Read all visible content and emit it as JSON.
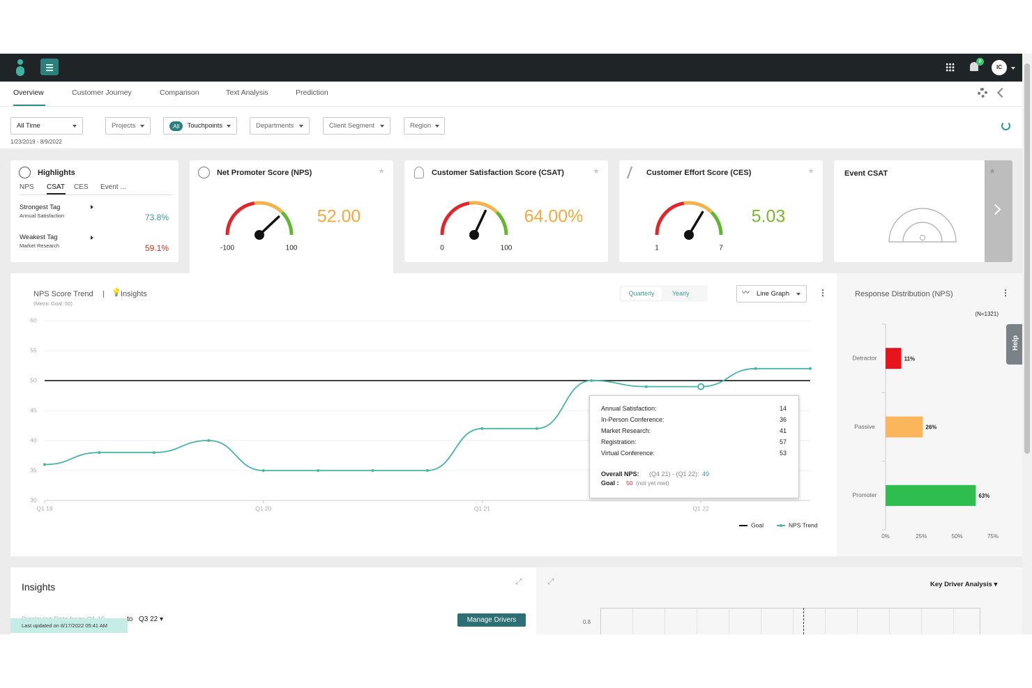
{
  "nav": {
    "badge": "8",
    "avatar": "IC"
  },
  "tabs": [
    "Overview",
    "Customer Journey",
    "Comparison",
    "Text Analysis",
    "Prediction"
  ],
  "filters": {
    "time": "All Time",
    "date_range": "1/23/2019 - 8/9/2022",
    "projects": "Projects",
    "all": "All",
    "touchpoints": "Touchpoints",
    "departments": "Departments",
    "client_segment": "Client Segment",
    "region": "Region"
  },
  "highlights": {
    "title": "Highlights",
    "tabs": [
      "NPS",
      "CSAT",
      "CES",
      "Event ..."
    ],
    "items": [
      {
        "label": "Strongest Tag",
        "sub": "Annual Satisfaction",
        "value": "73.8%"
      },
      {
        "label": "Weakest Tag",
        "sub": "Market Research",
        "value": "59.1%"
      }
    ]
  },
  "event_csat": {
    "title": "Event CSAT"
  },
  "chart_data": [
    {
      "type": "gauge",
      "title": "Net Promoter Score (NPS)",
      "values": [
        52
      ],
      "value_labels": [
        "52.00"
      ],
      "ylim": [
        -100,
        100
      ],
      "yticks": [
        -100,
        100
      ],
      "color": "#f3a93b"
    },
    {
      "type": "gauge",
      "title": "Customer Satisfaction Score (CSAT)",
      "values": [
        64
      ],
      "value_labels": [
        "64.00%"
      ],
      "ylim": [
        0,
        100
      ],
      "yticks": [
        0,
        100
      ],
      "color": "#f3a93b"
    },
    {
      "type": "gauge",
      "title": "Customer Effort Score (CES)",
      "values": [
        5.03
      ],
      "ylim": [
        1,
        7
      ],
      "yticks": [
        1,
        7
      ],
      "color": "#79b82b"
    },
    {
      "type": "line",
      "title": "NPS Score Trend",
      "subtitle": "(Metric Goal: 50)",
      "categories": [
        "Q1 19",
        null,
        null,
        null,
        "Q1 20",
        null,
        null,
        null,
        "Q1 21",
        null,
        null,
        null,
        "Q1 22",
        null,
        null
      ],
      "series": [
        {
          "name": "Goal",
          "color": "#000000",
          "values": [
            50,
            50,
            50,
            50,
            50,
            50,
            50,
            50,
            50,
            50,
            50,
            50,
            50,
            50,
            50
          ]
        },
        {
          "name": "NPS Trend",
          "color": "#45b5a6",
          "values": [
            36,
            38,
            38,
            40,
            35,
            35,
            35,
            35,
            42,
            42,
            50,
            49,
            49,
            52,
            52
          ]
        }
      ],
      "ylim": [
        30,
        60
      ],
      "yticks": [
        30,
        35,
        40,
        45,
        50,
        55,
        60
      ],
      "grid": true
    },
    {
      "type": "bar",
      "orientation": "horizontal",
      "title": "Response Distribution (NPS)",
      "subtitle": "(N=1321)",
      "categories": [
        "Detractor",
        "Passive",
        "Promoter"
      ],
      "values": [
        11,
        26,
        63
      ],
      "value_labels": [
        "11%",
        "26%",
        "63%"
      ],
      "colors": [
        "#e8141b",
        "#fbb65c",
        "#2ebd4e"
      ],
      "xlim": [
        0,
        75
      ],
      "xticks": [
        {
          "value": 0,
          "label": "0%"
        },
        {
          "value": 25,
          "label": "25%"
        },
        {
          "value": 50,
          "label": "50%"
        },
        {
          "value": 75,
          "label": "75%"
        }
      ]
    }
  ],
  "trend_controls": {
    "insights": "Insights",
    "quarterly": "Quarterly",
    "yearly": "Yearly",
    "graph_type": "Line Graph"
  },
  "tooltip": {
    "rows": [
      {
        "label": "Annual Satisfaction:",
        "value": "14"
      },
      {
        "label": "In-Person Conference:",
        "value": "36"
      },
      {
        "label": "Market Research:",
        "value": "41"
      },
      {
        "label": "Registration:",
        "value": "57"
      },
      {
        "label": "Virtual Conference:",
        "value": "53"
      }
    ],
    "overall_label": "Overall NPS:",
    "overall_range": "(Q4 21) - (Q1 22):",
    "overall_value": "49",
    "goal_label": "Goal :",
    "goal_value": "50",
    "goal_note": "(not yet met)"
  },
  "insights": {
    "title": "Insights",
    "displaying": "Displaying Data from:",
    "from": "Q1 19",
    "to": "to",
    "to_value": "Q3 22",
    "manage": "Manage Drivers",
    "toast": "Last updated on 8/17/2022 05:41 AM"
  },
  "key_driver": {
    "title": "Key Driver Analysis",
    "ytick": "0.8"
  },
  "help": "Help"
}
